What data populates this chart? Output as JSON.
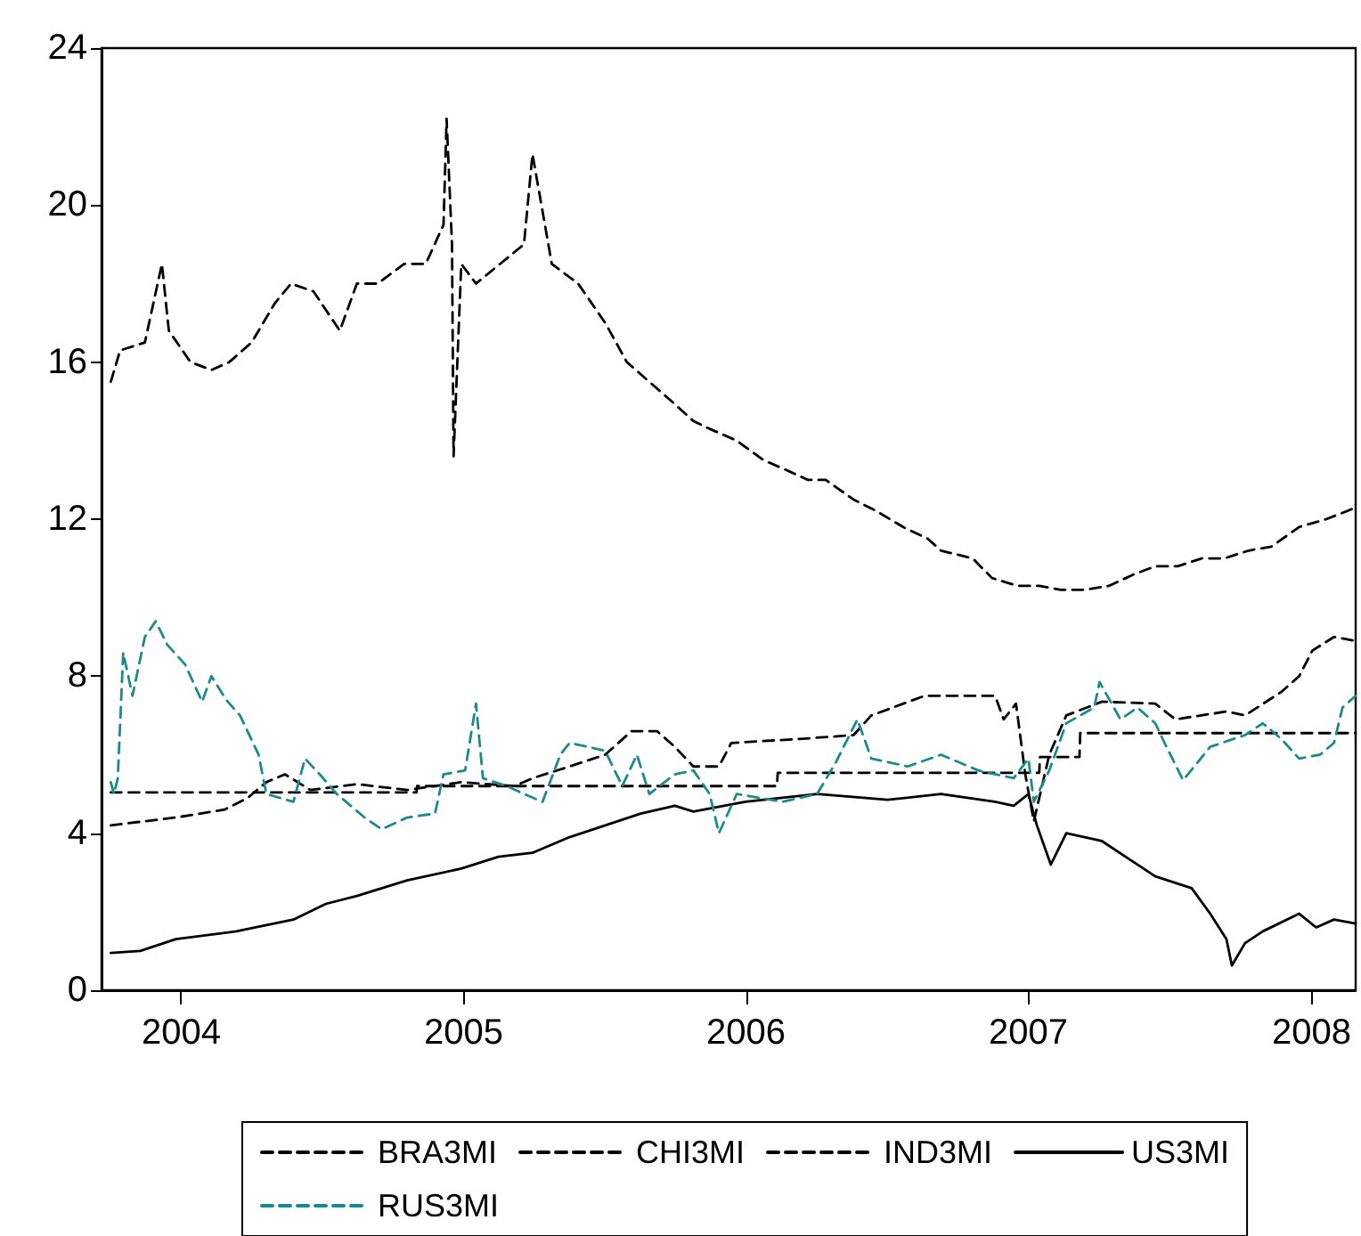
{
  "chart_data": {
    "type": "line",
    "xlim": [
      "2004-03-20",
      "2008-08-27"
    ],
    "xticks": [
      {
        "value": "2004-07-01",
        "label": "2004"
      },
      {
        "value": "2005-07-01",
        "label": "2005"
      },
      {
        "value": "2006-07-01",
        "label": "2006"
      },
      {
        "value": "2007-07-01",
        "label": "2007"
      },
      {
        "value": "2008-07-01",
        "label": "2008"
      }
    ],
    "ylim": [
      0,
      24
    ],
    "yticks": [
      0,
      4,
      8,
      12,
      16,
      20,
      24
    ],
    "grid": false,
    "legend": "bottom",
    "marker": "none",
    "series": [
      {
        "name": "BRA3MI",
        "color": "#000000",
        "line_style": "dashed",
        "x": [
          "2004-04-01",
          "2004-04-13",
          "2004-05-15",
          "2004-06-06",
          "2004-06-15",
          "2004-07-13",
          "2004-08-09",
          "2004-09-01",
          "2004-09-30",
          "2004-10-30",
          "2004-11-20",
          "2004-12-19",
          "2005-01-22",
          "2005-02-13",
          "2005-03-12",
          "2005-04-15",
          "2005-05-13",
          "2005-06-05",
          "2005-06-09",
          "2005-06-16",
          "2005-06-18",
          "2005-06-28",
          "2005-07-17",
          "2005-08-17",
          "2005-09-17",
          "2005-09-28",
          "2005-10-23",
          "2005-11-26",
          "2005-12-31",
          "2006-01-28",
          "2006-02-26",
          "2006-03-27",
          "2006-04-24",
          "2006-05-15",
          "2006-06-19",
          "2006-07-24",
          "2006-08-28",
          "2006-09-19",
          "2006-10-12",
          "2006-11-17",
          "2006-12-17",
          "2007-01-20",
          "2007-02-21",
          "2007-03-10",
          "2007-04-20",
          "2007-05-15",
          "2007-06-17",
          "2007-07-15",
          "2007-08-12",
          "2007-09-12",
          "2007-10-13",
          "2007-11-15",
          "2007-12-12",
          "2008-01-10",
          "2008-02-10",
          "2008-03-10",
          "2008-04-11",
          "2008-05-10",
          "2008-06-15",
          "2008-07-20",
          "2008-08-15",
          "2008-08-27"
        ],
        "values": [
          15.5,
          16.3,
          16.5,
          18.5,
          16.8,
          16,
          15.8,
          16,
          16.5,
          17.5,
          18,
          17.8,
          16.8,
          18,
          18,
          18.5,
          18.5,
          19.5,
          22.2,
          19,
          13.6,
          18.5,
          18,
          18.5,
          19,
          21.3,
          18.5,
          18,
          17,
          16,
          15.5,
          15,
          14.5,
          14.3,
          14,
          13.5,
          13.2,
          13,
          13,
          12.5,
          12.2,
          11.8,
          11.5,
          11.2,
          11,
          10.5,
          10.3,
          10.3,
          10.2,
          10.2,
          10.3,
          10.6,
          10.8,
          10.8,
          11,
          11,
          11.2,
          11.3,
          11.8,
          12,
          12.2,
          12.3
        ]
      },
      {
        "name": "CHI3MI",
        "color": "#000000",
        "line_style": "dashed",
        "x": [
          "2004-04-01",
          "2005-05-01",
          "2005-05-02",
          "2006-08-10",
          "2006-08-11",
          "2007-07-15",
          "2007-07-16",
          "2007-09-05",
          "2007-09-06",
          "2008-08-27"
        ],
        "values": [
          5.04,
          5.04,
          5.2,
          5.2,
          5.54,
          5.54,
          5.94,
          5.94,
          6.55,
          6.55
        ]
      },
      {
        "name": "IND3MI",
        "color": "#000000",
        "line_style": "dashed",
        "x": [
          "2004-04-01",
          "2004-06-24",
          "2004-08-26",
          "2004-09-25",
          "2004-10-19",
          "2004-11-12",
          "2004-12-15",
          "2005-02-13",
          "2005-04-19",
          "2005-06-28",
          "2005-09-05",
          "2005-09-28",
          "2005-11-15",
          "2005-12-31",
          "2006-02-03",
          "2006-03-08",
          "2006-03-31",
          "2006-04-24",
          "2006-05-27",
          "2006-06-12",
          "2006-09-08",
          "2006-11-17",
          "2006-12-10",
          "2007-02-17",
          "2007-04-04",
          "2007-05-19",
          "2007-05-30",
          "2007-06-15",
          "2007-06-27",
          "2007-07-08",
          "2007-07-28",
          "2007-08-19",
          "2007-10-04",
          "2007-12-12",
          "2008-01-07",
          "2008-03-13",
          "2008-04-06",
          "2008-05-23",
          "2008-06-15",
          "2008-07-02",
          "2008-07-30",
          "2008-08-27"
        ],
        "values": [
          4.2,
          4.4,
          4.6,
          4.9,
          5.3,
          5.5,
          5.1,
          5.25,
          5.1,
          5.3,
          5.2,
          5.4,
          5.7,
          6,
          6.6,
          6.6,
          6.2,
          5.7,
          5.7,
          6.3,
          6.4,
          6.5,
          7,
          7.5,
          7.5,
          7.5,
          6.9,
          7.3,
          5.5,
          4.3,
          6,
          7,
          7.35,
          7.3,
          6.9,
          7.1,
          7,
          7.6,
          8,
          8.65,
          9,
          8.9
        ]
      },
      {
        "name": "US3MI",
        "color": "#000000",
        "line_style": "solid",
        "x": [
          "2004-04-01",
          "2004-05-09",
          "2004-06-24",
          "2004-09-10",
          "2004-11-23",
          "2005-01-04",
          "2005-02-13",
          "2005-04-19",
          "2005-06-28",
          "2005-08-15",
          "2005-09-28",
          "2005-11-15",
          "2005-12-31",
          "2006-02-15",
          "2006-03-31",
          "2006-04-24",
          "2006-06-30",
          "2006-10-01",
          "2006-12-31",
          "2007-03-10",
          "2007-05-19",
          "2007-06-12",
          "2007-07-01",
          "2007-07-12",
          "2007-07-30",
          "2007-08-19",
          "2007-10-04",
          "2007-11-19",
          "2007-12-12",
          "2008-01-28",
          "2008-02-21",
          "2008-03-13",
          "2008-03-20",
          "2008-04-06",
          "2008-04-29",
          "2008-06-15",
          "2008-07-07",
          "2008-07-30",
          "2008-08-27"
        ],
        "values": [
          0.95,
          1,
          1.3,
          1.5,
          1.8,
          2.2,
          2.4,
          2.8,
          3.1,
          3.4,
          3.5,
          3.9,
          4.2,
          4.5,
          4.7,
          4.55,
          4.8,
          5,
          4.85,
          5,
          4.8,
          4.7,
          5,
          4.2,
          3.2,
          4,
          3.8,
          3.2,
          2.9,
          2.6,
          1.95,
          1.3,
          0.63,
          1.2,
          1.5,
          1.95,
          1.6,
          1.8,
          1.7
        ]
      },
      {
        "name": "RUS3MI",
        "color": "#1a8a8a",
        "line_style": "dashed",
        "x": [
          "2004-04-01",
          "2004-04-05",
          "2004-04-10",
          "2004-04-17",
          "2004-04-29",
          "2004-05-15",
          "2004-05-29",
          "2004-06-13",
          "2004-07-06",
          "2004-07-28",
          "2004-08-09",
          "2004-08-28",
          "2004-09-15",
          "2004-10-09",
          "2004-10-19",
          "2004-11-23",
          "2004-12-08",
          "2004-12-27",
          "2005-01-18",
          "2005-02-23",
          "2005-03-17",
          "2005-04-19",
          "2005-05-25",
          "2005-06-05",
          "2005-07-03",
          "2005-07-17",
          "2005-07-26",
          "2005-08-26",
          "2005-09-17",
          "2005-10-11",
          "2005-11-03",
          "2005-11-15",
          "2005-12-31",
          "2006-01-22",
          "2006-02-10",
          "2006-02-26",
          "2006-03-31",
          "2006-04-24",
          "2006-05-15",
          "2006-05-27",
          "2006-06-19",
          "2006-08-17",
          "2006-10-01",
          "2006-10-25",
          "2006-11-22",
          "2006-12-10",
          "2007-01-26",
          "2007-03-10",
          "2007-04-27",
          "2007-06-12",
          "2007-07-01",
          "2007-07-08",
          "2007-07-28",
          "2007-08-19",
          "2007-09-24",
          "2007-10-01",
          "2007-10-28",
          "2007-11-19",
          "2007-12-12",
          "2007-12-24",
          "2008-01-17",
          "2008-02-21",
          "2008-04-06",
          "2008-04-29",
          "2008-05-23",
          "2008-06-15",
          "2008-07-12",
          "2008-07-30",
          "2008-08-10",
          "2008-08-27"
        ],
        "values": [
          5.3,
          5,
          5.4,
          8.6,
          7.5,
          9,
          9.4,
          8.8,
          8.3,
          7.35,
          8,
          7.4,
          7,
          6,
          5,
          4.8,
          5.9,
          5.5,
          5,
          4.4,
          4.1,
          4.4,
          4.5,
          5.5,
          5.6,
          7.3,
          5.4,
          5.2,
          5,
          4.8,
          6,
          6.3,
          6.1,
          5.2,
          6,
          5,
          5.5,
          5.6,
          5,
          4,
          5,
          4.8,
          5,
          5.8,
          6.9,
          5.9,
          5.7,
          6,
          5.6,
          5.4,
          5.9,
          4.8,
          5.6,
          6.8,
          7.2,
          7.85,
          6.9,
          7.2,
          6.8,
          6.3,
          5.35,
          6.2,
          6.5,
          6.8,
          6.4,
          5.9,
          6,
          6.3,
          7.2,
          7.5
        ]
      }
    ]
  }
}
